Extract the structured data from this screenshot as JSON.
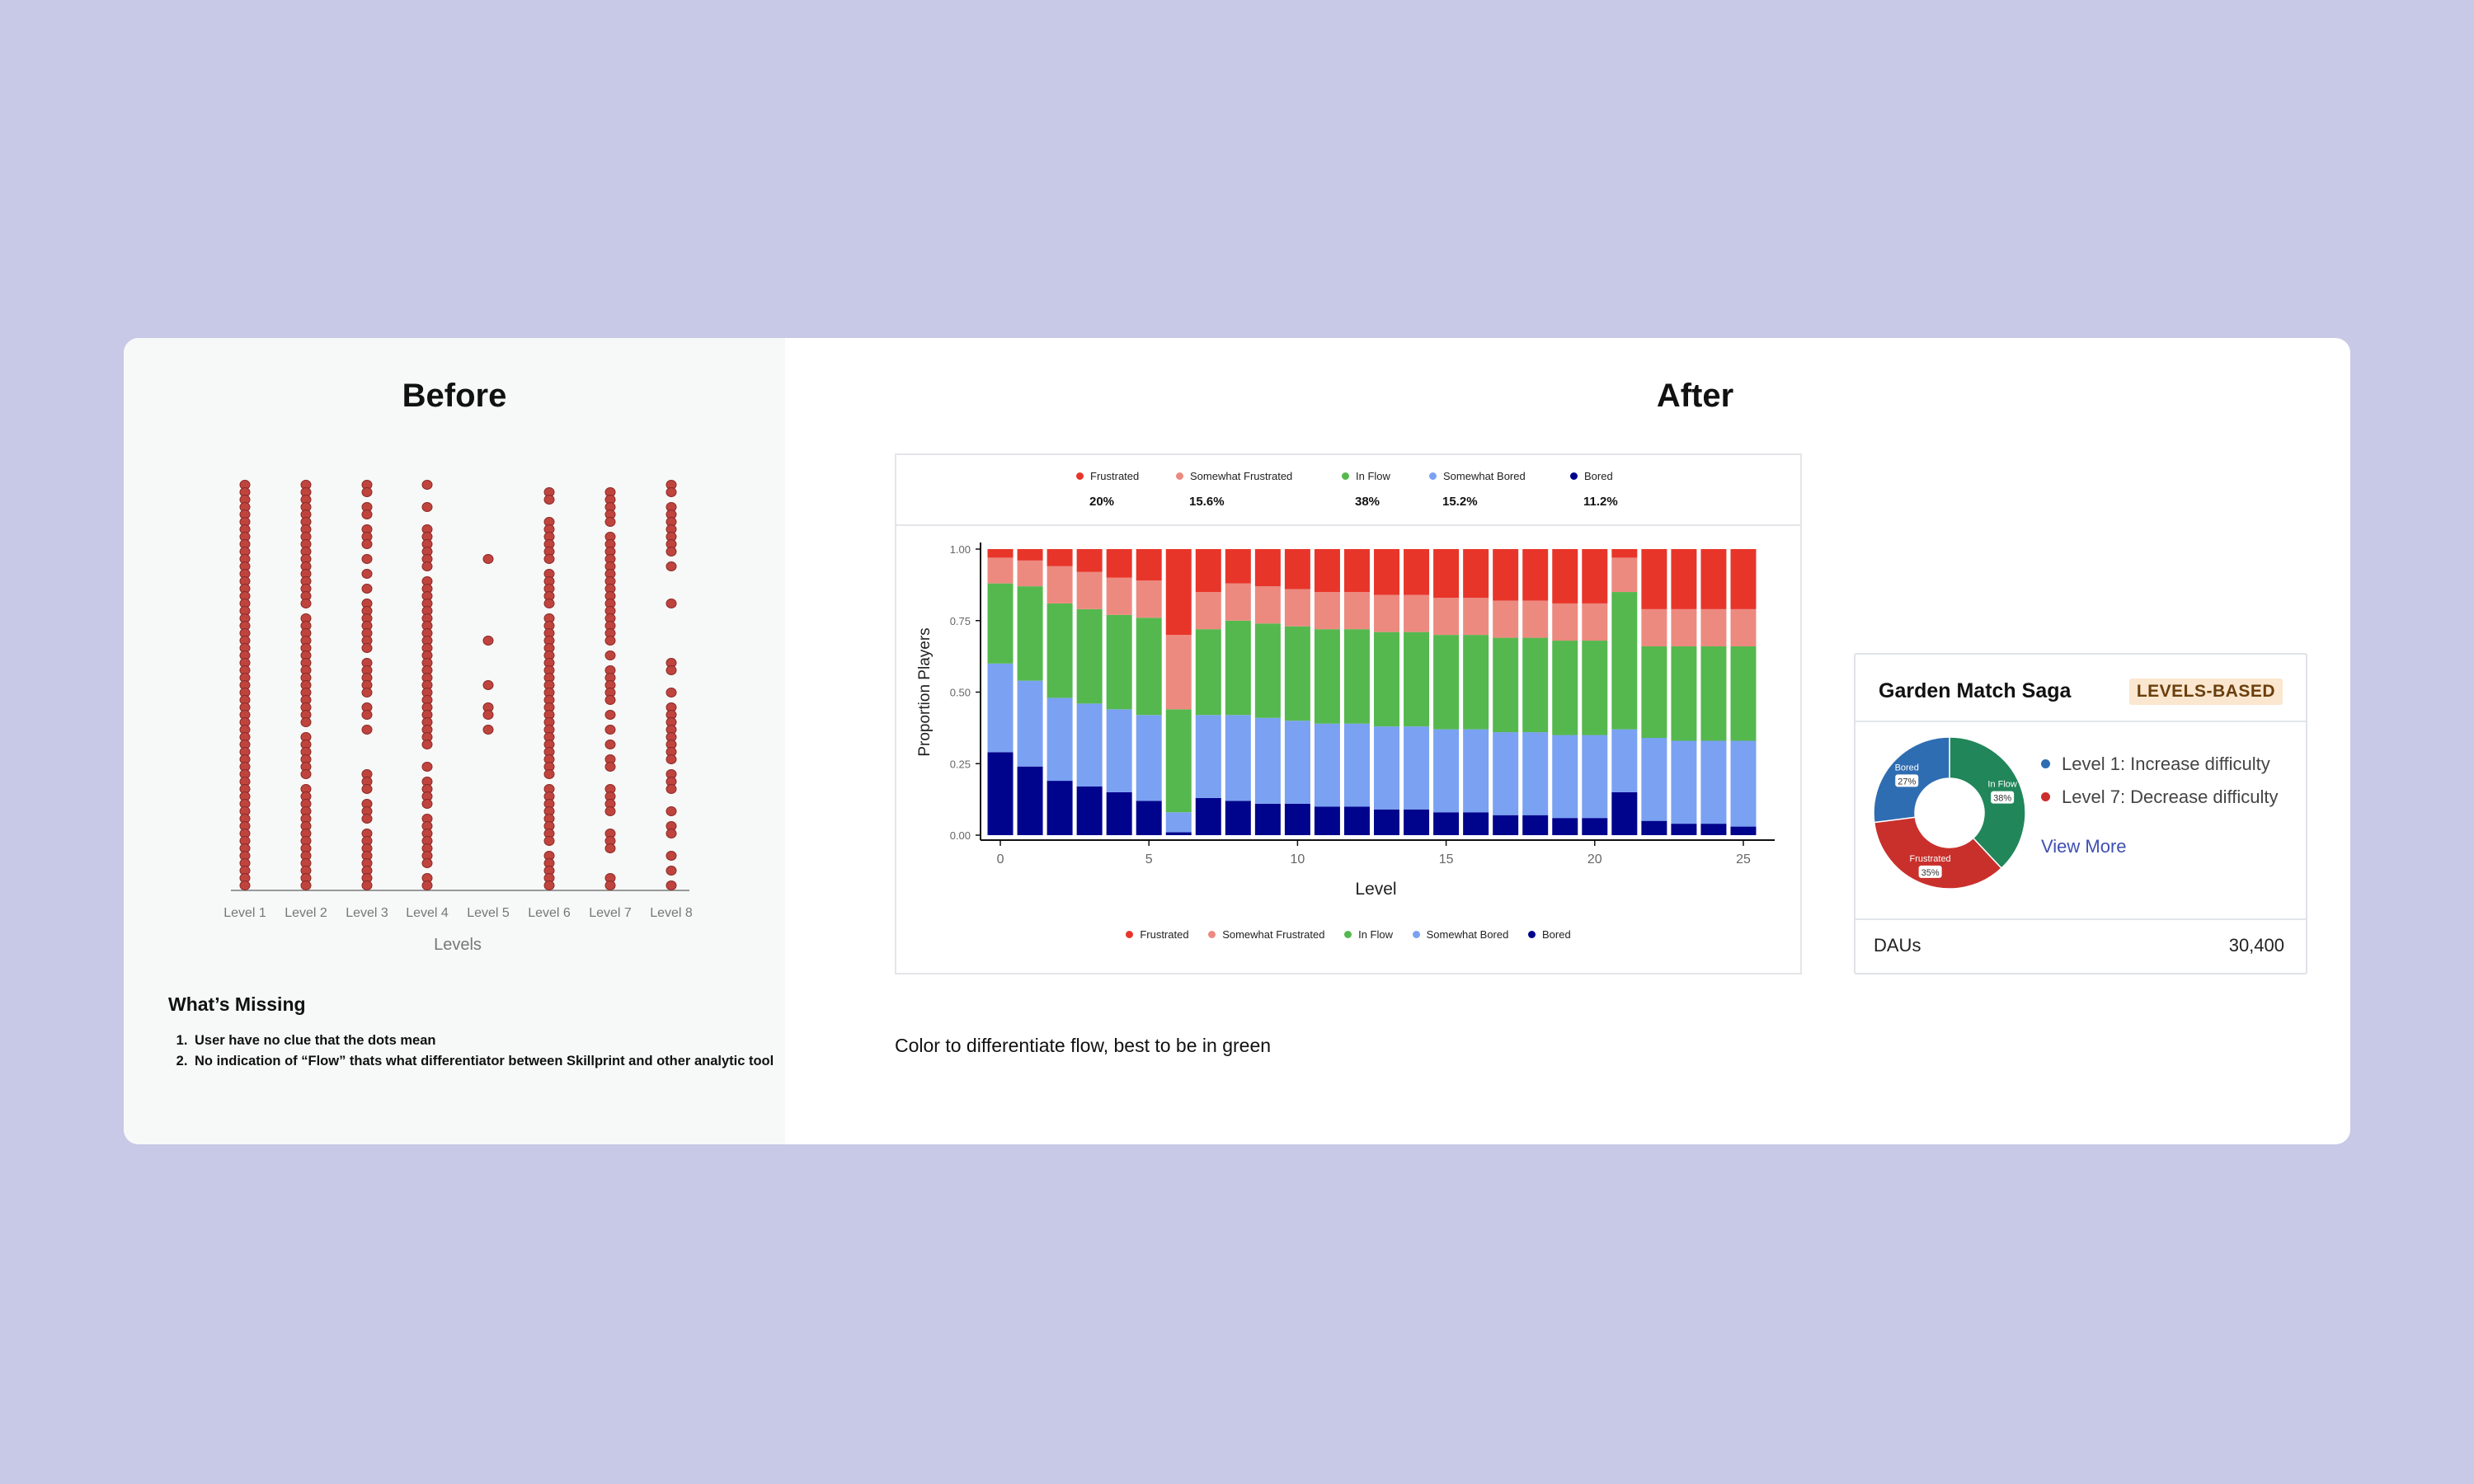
{
  "before": {
    "title": "Before",
    "missing_title": "What’s Missing",
    "missing_items": [
      "User have no clue that the dots mean",
      "No indication of “Flow” thats what differentiator between Skillprint and other analytic tool"
    ]
  },
  "after": {
    "title": "After",
    "caption": "Color to differentiate flow, best to be in green"
  },
  "colors": {
    "frustrated": "#e8352a",
    "somewhat_frustrated": "#ec8a80",
    "in_flow": "#55b84e",
    "somewhat_bored": "#7aa1f2",
    "bored": "#00048c",
    "dot": "#c0443e"
  },
  "legend_top": [
    {
      "label": "Frustrated",
      "pct": "20%"
    },
    {
      "label": "Somewhat Frustrated",
      "pct": "15.6%"
    },
    {
      "label": "In Flow",
      "pct": "38%"
    },
    {
      "label": "Somewhat Bored",
      "pct": "15.2%"
    },
    {
      "label": "Bored",
      "pct": "11.2%"
    }
  ],
  "legend_bottom": [
    "Frustrated",
    "Somewhat Frustrated",
    "In Flow",
    "Somewhat Bored",
    "Bored"
  ],
  "game_card": {
    "title": "Garden Match Saga",
    "badge": "LEVELS-BASED",
    "recommendations": [
      {
        "text": "Level 1: Increase difficulty",
        "color": "#2e6db0"
      },
      {
        "text": "Level 7: Decrease difficulty",
        "color": "#cc2e2e"
      }
    ],
    "view_more": "View More",
    "dau_label": "DAUs",
    "dau_value": "30,400"
  },
  "chart_data": [
    {
      "type": "scatter",
      "xlabel": "Levels",
      "categories": [
        "Level 1",
        "Level 2",
        "Level 3",
        "Level 4",
        "Level 5",
        "Level 6",
        "Level 7",
        "Level 8"
      ],
      "note_density": [
        1.0,
        0.92,
        0.75,
        0.85,
        0.12,
        0.9,
        0.8,
        0.5
      ],
      "legend": "none",
      "grid": false
    },
    {
      "type": "bar",
      "stacked": true,
      "xlabel": "Level",
      "ylabel": "Proportion Players",
      "x": [
        0,
        1,
        2,
        3,
        4,
        5,
        6,
        7,
        8,
        9,
        10,
        11,
        12,
        13,
        14,
        15,
        16,
        17,
        18,
        19,
        20,
        21,
        22,
        23,
        24,
        25
      ],
      "ylim": [
        0,
        1
      ],
      "yticks": [
        "0.00",
        "0.25",
        "0.50",
        "0.75",
        "1.00"
      ],
      "xticks": [
        0,
        5,
        10,
        15,
        20,
        25
      ],
      "series": [
        {
          "name": "Bored",
          "values": [
            0.29,
            0.24,
            0.19,
            0.17,
            0.15,
            0.12,
            0.01,
            0.13,
            0.12,
            0.11,
            0.11,
            0.1,
            0.1,
            0.09,
            0.09,
            0.08,
            0.08,
            0.07,
            0.07,
            0.06,
            0.06,
            0.15,
            0.05,
            0.04,
            0.04,
            0.03
          ]
        },
        {
          "name": "Somewhat Bored",
          "values": [
            0.31,
            0.3,
            0.29,
            0.29,
            0.29,
            0.3,
            0.07,
            0.29,
            0.3,
            0.3,
            0.29,
            0.29,
            0.29,
            0.29,
            0.29,
            0.29,
            0.29,
            0.29,
            0.29,
            0.29,
            0.29,
            0.22,
            0.29,
            0.29,
            0.29,
            0.3
          ]
        },
        {
          "name": "In Flow",
          "values": [
            0.28,
            0.33,
            0.33,
            0.33,
            0.33,
            0.34,
            0.36,
            0.3,
            0.33,
            0.33,
            0.33,
            0.33,
            0.33,
            0.33,
            0.33,
            0.33,
            0.33,
            0.33,
            0.33,
            0.33,
            0.33,
            0.48,
            0.32,
            0.33,
            0.33,
            0.33
          ]
        },
        {
          "name": "Somewhat Frustrated",
          "values": [
            0.09,
            0.09,
            0.13,
            0.13,
            0.13,
            0.13,
            0.26,
            0.13,
            0.13,
            0.13,
            0.13,
            0.13,
            0.13,
            0.13,
            0.13,
            0.13,
            0.13,
            0.13,
            0.13,
            0.13,
            0.13,
            0.12,
            0.13,
            0.13,
            0.13,
            0.13
          ]
        },
        {
          "name": "Frustrated",
          "values": [
            0.03,
            0.04,
            0.06,
            0.08,
            0.1,
            0.11,
            0.3,
            0.15,
            0.12,
            0.13,
            0.14,
            0.15,
            0.15,
            0.16,
            0.16,
            0.17,
            0.17,
            0.18,
            0.18,
            0.19,
            0.19,
            0.03,
            0.21,
            0.21,
            0.21,
            0.21
          ]
        }
      ]
    },
    {
      "type": "pie",
      "donut": true,
      "slices": [
        {
          "label": "In Flow",
          "value": 38,
          "text": "38%",
          "color": "#21865a"
        },
        {
          "label": "Frustrated",
          "value": 35,
          "text": "35%",
          "color": "#c9302c"
        },
        {
          "label": "Bored",
          "value": 27,
          "text": "27%",
          "color": "#2f6db2"
        }
      ]
    }
  ]
}
